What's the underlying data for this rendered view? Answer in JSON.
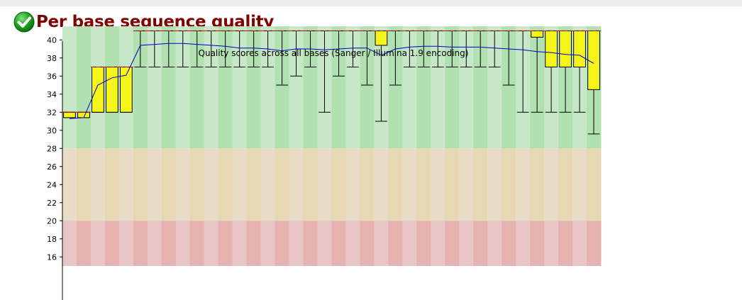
{
  "module": {
    "title": "Per base sequence quality",
    "status": "pass",
    "status_icon": "check-circle-icon",
    "status_color": "#1a9b1a"
  },
  "chart_data": {
    "type": "box",
    "title": "Quality scores across all bases (Sanger / Illumina 1.9 encoding)",
    "xlabel": "",
    "ylabel": "",
    "ylim": [
      15,
      41.5
    ],
    "yticks": [
      16,
      18,
      20,
      22,
      24,
      26,
      28,
      30,
      32,
      34,
      36,
      38,
      40
    ],
    "grid": false,
    "zones": [
      {
        "from": 28,
        "to": 41.5,
        "color": "#c6e8c6",
        "alt_color": "#b1e0b1"
      },
      {
        "from": 20,
        "to": 28,
        "color": "#e8dcc6",
        "alt_color": "#e6d8b2"
      },
      {
        "from": 15,
        "to": 20,
        "color": "#e8c6c6",
        "alt_color": "#e6b2b2"
      }
    ],
    "box_color": "#f5f51a",
    "mean_color": "#0000cc",
    "median_color": "#cc0000",
    "positions": 38,
    "series": [
      {
        "key": "lower_whisker",
        "values": [
          31.4,
          31.4,
          32,
          32,
          32,
          37,
          37,
          37,
          37,
          37,
          37,
          37,
          37,
          37,
          37,
          35,
          36,
          37,
          32,
          36,
          37,
          35,
          31,
          35,
          37,
          37,
          37,
          37,
          37,
          37,
          37,
          35,
          32,
          32,
          32,
          32,
          32,
          29.6
        ]
      },
      {
        "key": "lower_quartile",
        "values": [
          31.4,
          31.4,
          32,
          32,
          32,
          41,
          41,
          41,
          41,
          41,
          41,
          41,
          41,
          41,
          41,
          41,
          41,
          41,
          41,
          41,
          41,
          41,
          39.4,
          41,
          41,
          41,
          41,
          41,
          41,
          41,
          41,
          41,
          41,
          40.3,
          37,
          37,
          37,
          34.5
        ]
      },
      {
        "key": "median",
        "values": [
          32,
          32,
          37,
          37,
          37,
          41,
          41,
          41,
          41,
          41,
          41,
          41,
          41,
          41,
          41,
          41,
          41,
          41,
          41,
          41,
          41,
          41,
          41,
          41,
          41,
          41,
          41,
          41,
          41,
          41,
          41,
          41,
          41,
          41,
          41,
          41,
          41,
          41
        ]
      },
      {
        "key": "upper_quartile",
        "values": [
          32,
          32,
          37,
          37,
          37,
          41,
          41,
          41,
          41,
          41,
          41,
          41,
          41,
          41,
          41,
          41,
          41,
          41,
          41,
          41,
          41,
          41,
          41,
          41,
          41,
          41,
          41,
          41,
          41,
          41,
          41,
          41,
          41,
          41,
          41,
          41,
          41,
          41
        ]
      },
      {
        "key": "upper_whisker",
        "values": [
          32,
          32,
          37,
          37,
          37,
          41,
          41,
          41,
          41,
          41,
          41,
          41,
          41,
          41,
          41,
          41,
          41,
          41,
          41,
          41,
          41,
          41,
          41,
          41,
          41,
          41,
          41,
          41,
          41,
          41,
          41,
          41,
          41,
          41,
          41,
          41,
          41,
          41
        ]
      },
      {
        "key": "mean",
        "values": [
          31.3,
          31.4,
          35,
          35.8,
          36.1,
          39.4,
          39.5,
          39.6,
          39.6,
          39.5,
          39.4,
          39.3,
          39.1,
          39.1,
          39,
          38.8,
          39,
          39,
          38.9,
          39,
          39.1,
          39.1,
          38.3,
          39,
          39.2,
          39.3,
          39.3,
          39.2,
          39.2,
          39.2,
          39.1,
          39,
          38.9,
          38.7,
          38.6,
          38.4,
          38.3,
          37.4
        ]
      }
    ]
  }
}
